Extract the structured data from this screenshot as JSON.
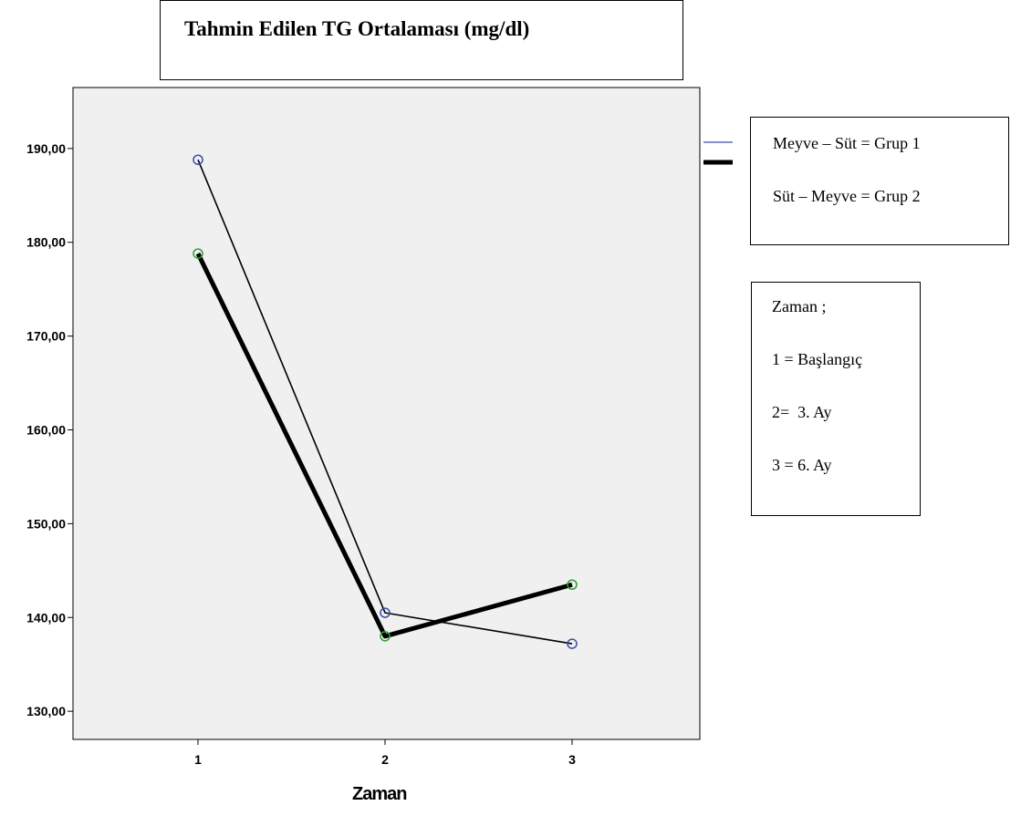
{
  "chart_data": {
    "type": "line",
    "title": "Tahmin Edilen TG Ortalaması (mg/dl)",
    "xlabel": "Zaman",
    "ylabel": "",
    "categories": [
      "1",
      "2",
      "3"
    ],
    "ylim": [
      127,
      196.5
    ],
    "yticks": [
      "130,00",
      "140,00",
      "150,00",
      "160,00",
      "170,00",
      "180,00",
      "190,00"
    ],
    "ytick_values": [
      130,
      140,
      150,
      160,
      170,
      180,
      190
    ],
    "grid": false,
    "series": [
      {
        "name": "Meyve – Süt = Grup 1",
        "values": [
          188.8,
          140.5,
          137.2
        ],
        "line_color": "#000000",
        "marker_color": "#3b4da6",
        "legend_color": "#5a6db8",
        "bold": false
      },
      {
        "name": "Süt – Meyve = Grup 2",
        "values": [
          178.8,
          138.0,
          143.5
        ],
        "line_color": "#000000",
        "marker_color": "#2ca02c",
        "legend_color": "#000000",
        "bold": true
      }
    ],
    "legend_position": "right",
    "plot_background": "#f0f0f0"
  },
  "notes": {
    "lines": [
      "Zaman ;",
      "1 = Başlangıç",
      "2=  3. Ay",
      "3 = 6. Ay"
    ]
  }
}
